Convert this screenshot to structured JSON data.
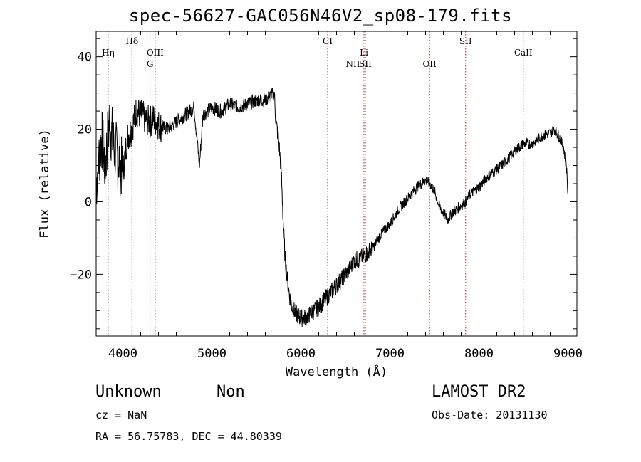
{
  "chart_data": {
    "type": "line",
    "title": "spec-56627-GAC056N46V2_sp08-179.fits",
    "xlabel": "Wavelength (Å)",
    "ylabel": "Flux (relative)",
    "xlim": [
      3700,
      9100
    ],
    "ylim": [
      -37,
      47
    ],
    "xticks": [
      4000,
      5000,
      6000,
      7000,
      8000,
      9000
    ],
    "xtick_labels": [
      "4000",
      "5000",
      "6000",
      "7000",
      "8000",
      "9000"
    ],
    "yticks": [
      -20,
      0,
      20,
      40
    ],
    "ytick_labels": [
      "−20",
      "0",
      "20",
      "40"
    ],
    "grid": false,
    "line_color": "#000000",
    "marker_color": "#aa2222",
    "spectrum": {
      "x": [
        3700,
        3760,
        3800,
        3850,
        3900,
        3950,
        4000,
        4050,
        4100,
        4150,
        4200,
        4250,
        4300,
        4350,
        4400,
        4500,
        4600,
        4700,
        4800,
        4860,
        4900,
        5000,
        5100,
        5200,
        5300,
        5400,
        5500,
        5600,
        5650,
        5700,
        5720,
        5750,
        5780,
        5800,
        5820,
        5850,
        5880,
        5900,
        5950,
        6000,
        6050,
        6100,
        6200,
        6300,
        6400,
        6500,
        6560,
        6600,
        6650,
        6700,
        6800,
        6900,
        7000,
        7100,
        7200,
        7300,
        7400,
        7450,
        7500,
        7550,
        7600,
        7650,
        7700,
        7750,
        7800,
        7850,
        7900,
        8000,
        8100,
        8200,
        8300,
        8400,
        8500,
        8600,
        8700,
        8800,
        8850,
        8900,
        8950,
        8990,
        9000
      ],
      "y": [
        5,
        18,
        10,
        22,
        15,
        12,
        8,
        18,
        20,
        25,
        24,
        23,
        22,
        23,
        21,
        20,
        22,
        24,
        26,
        10,
        24,
        26,
        25,
        27,
        26,
        27,
        28,
        28,
        29,
        30,
        22,
        17,
        8,
        -5,
        -15,
        -22,
        -27,
        -29,
        -31,
        -32,
        -32,
        -31,
        -29,
        -26,
        -23,
        -20,
        -18,
        -16,
        -16,
        -15,
        -13,
        -9,
        -6,
        -2,
        1,
        4,
        6,
        5,
        3,
        -1,
        -3,
        -5,
        -3,
        -2,
        -1,
        0,
        2,
        4,
        7,
        9,
        11,
        14,
        16,
        16,
        18,
        19,
        20,
        18,
        15,
        8,
        -1
      ]
    },
    "lines": [
      {
        "label": "Hη",
        "x": 3835,
        "row": 2
      },
      {
        "label": "Hδ",
        "x": 4102,
        "row": 1
      },
      {
        "label": "OIII",
        "x": 4363,
        "row": 2
      },
      {
        "label": "G",
        "x": 4305,
        "row": 3
      },
      {
        "label": "CI",
        "x": 6300,
        "row": 1
      },
      {
        "label": "Li",
        "x": 6708,
        "row": 2
      },
      {
        "label": "NII",
        "x": 6584,
        "row": 3
      },
      {
        "label": "SII",
        "x": 6724,
        "row": 3
      },
      {
        "label": "OII",
        "x": 7445,
        "row": 3
      },
      {
        "label": "SII",
        "x": 7850,
        "row": 1
      },
      {
        "label": "CaII",
        "x": 8498,
        "row": 2
      }
    ]
  },
  "footer": {
    "class_label": "Unknown",
    "subclass_label": "Non",
    "survey": "LAMOST DR2",
    "cz_text": "cz = NaN",
    "obs_date_text": "Obs-Date: 20131130",
    "radec_text": "RA =  56.75783, DEC =  44.80339"
  }
}
